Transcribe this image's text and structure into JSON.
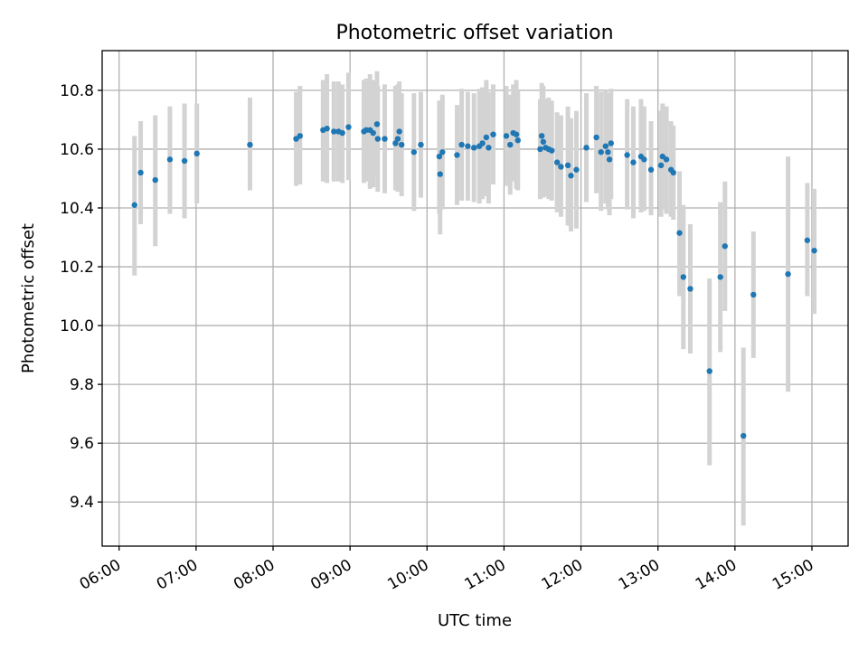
{
  "chart_data": {
    "type": "scatter",
    "title": "Photometric offset variation",
    "xlabel": "UTC time",
    "ylabel": "Photometric offset",
    "x_tick_labels": [
      "06:00",
      "07:00",
      "08:00",
      "09:00",
      "10:00",
      "11:00",
      "12:00",
      "13:00",
      "14:00",
      "15:00"
    ],
    "x_ticks_hours": [
      6,
      7,
      8,
      9,
      10,
      11,
      12,
      13,
      14,
      15
    ],
    "y_tick_labels": [
      "9.4",
      "9.6",
      "9.8",
      "10.0",
      "10.2",
      "10.4",
      "10.6",
      "10.8"
    ],
    "y_ticks": [
      9.4,
      9.6,
      9.8,
      10.0,
      10.2,
      10.4,
      10.6,
      10.8
    ],
    "xlim_hours": [
      5.78,
      15.47
    ],
    "ylim": [
      9.25,
      10.935
    ],
    "grid": true,
    "colors": {
      "point": "#1f77b4",
      "errorbar": "#d3d3d3",
      "grid": "#b0b0b0"
    },
    "series": [
      {
        "points": [
          {
            "x": 6.2,
            "y": 10.41,
            "lo": 10.17,
            "hi": 10.645
          },
          {
            "x": 6.28,
            "y": 10.52,
            "lo": 10.345,
            "hi": 10.695
          },
          {
            "x": 6.47,
            "y": 10.495,
            "lo": 10.27,
            "hi": 10.715
          },
          {
            "x": 6.66,
            "y": 10.565,
            "lo": 10.38,
            "hi": 10.745
          },
          {
            "x": 6.85,
            "y": 10.56,
            "lo": 10.365,
            "hi": 10.755
          },
          {
            "x": 7.01,
            "y": 10.585,
            "lo": 10.415,
            "hi": 10.755
          },
          {
            "x": 7.7,
            "y": 10.615,
            "lo": 10.46,
            "hi": 10.775
          },
          {
            "x": 8.3,
            "y": 10.635,
            "lo": 10.475,
            "hi": 10.795
          },
          {
            "x": 8.35,
            "y": 10.645,
            "lo": 10.48,
            "hi": 10.815
          },
          {
            "x": 8.65,
            "y": 10.665,
            "lo": 10.49,
            "hi": 10.835
          },
          {
            "x": 8.7,
            "y": 10.67,
            "lo": 10.485,
            "hi": 10.855
          },
          {
            "x": 8.79,
            "y": 10.66,
            "lo": 10.49,
            "hi": 10.83
          },
          {
            "x": 8.85,
            "y": 10.66,
            "lo": 10.49,
            "hi": 10.83
          },
          {
            "x": 8.9,
            "y": 10.655,
            "lo": 10.485,
            "hi": 10.82
          },
          {
            "x": 8.98,
            "y": 10.675,
            "lo": 10.495,
            "hi": 10.86
          },
          {
            "x": 9.18,
            "y": 10.66,
            "lo": 10.485,
            "hi": 10.835
          },
          {
            "x": 9.21,
            "y": 10.665,
            "lo": 10.49,
            "hi": 10.84
          },
          {
            "x": 9.26,
            "y": 10.665,
            "lo": 10.465,
            "hi": 10.855
          },
          {
            "x": 9.3,
            "y": 10.655,
            "lo": 10.47,
            "hi": 10.835
          },
          {
            "x": 9.35,
            "y": 10.685,
            "lo": 10.505,
            "hi": 10.865
          },
          {
            "x": 9.36,
            "y": 10.635,
            "lo": 10.455,
            "hi": 10.815
          },
          {
            "x": 9.45,
            "y": 10.635,
            "lo": 10.45,
            "hi": 10.82
          },
          {
            "x": 9.59,
            "y": 10.62,
            "lo": 10.46,
            "hi": 10.815
          },
          {
            "x": 9.62,
            "y": 10.635,
            "lo": 10.455,
            "hi": 10.82
          },
          {
            "x": 9.64,
            "y": 10.66,
            "lo": 10.49,
            "hi": 10.83
          },
          {
            "x": 9.67,
            "y": 10.615,
            "lo": 10.44,
            "hi": 10.79
          },
          {
            "x": 9.83,
            "y": 10.59,
            "lo": 10.39,
            "hi": 10.79
          },
          {
            "x": 9.92,
            "y": 10.615,
            "lo": 10.435,
            "hi": 10.795
          },
          {
            "x": 10.16,
            "y": 10.575,
            "lo": 10.38,
            "hi": 10.765
          },
          {
            "x": 10.17,
            "y": 10.515,
            "lo": 10.31,
            "hi": 10.72
          },
          {
            "x": 10.2,
            "y": 10.59,
            "lo": 10.395,
            "hi": 10.785
          },
          {
            "x": 10.39,
            "y": 10.58,
            "lo": 10.41,
            "hi": 10.75
          },
          {
            "x": 10.45,
            "y": 10.615,
            "lo": 10.425,
            "hi": 10.805
          },
          {
            "x": 10.53,
            "y": 10.61,
            "lo": 10.425,
            "hi": 10.795
          },
          {
            "x": 10.61,
            "y": 10.605,
            "lo": 10.42,
            "hi": 10.79
          },
          {
            "x": 10.68,
            "y": 10.61,
            "lo": 10.415,
            "hi": 10.805
          },
          {
            "x": 10.72,
            "y": 10.62,
            "lo": 10.43,
            "hi": 10.81
          },
          {
            "x": 10.77,
            "y": 10.64,
            "lo": 10.44,
            "hi": 10.835
          },
          {
            "x": 10.8,
            "y": 10.605,
            "lo": 10.415,
            "hi": 10.795
          },
          {
            "x": 10.86,
            "y": 10.65,
            "lo": 10.48,
            "hi": 10.82
          },
          {
            "x": 11.03,
            "y": 10.645,
            "lo": 10.475,
            "hi": 10.815
          },
          {
            "x": 11.08,
            "y": 10.615,
            "lo": 10.445,
            "hi": 10.785
          },
          {
            "x": 11.12,
            "y": 10.655,
            "lo": 10.49,
            "hi": 10.82
          },
          {
            "x": 11.16,
            "y": 10.65,
            "lo": 10.465,
            "hi": 10.835
          },
          {
            "x": 11.18,
            "y": 10.63,
            "lo": 10.46,
            "hi": 10.8
          },
          {
            "x": 11.47,
            "y": 10.6,
            "lo": 10.43,
            "hi": 10.77
          },
          {
            "x": 11.49,
            "y": 10.645,
            "lo": 10.47,
            "hi": 10.825
          },
          {
            "x": 11.51,
            "y": 10.625,
            "lo": 10.435,
            "hi": 10.815
          },
          {
            "x": 11.54,
            "y": 10.605,
            "lo": 10.44,
            "hi": 10.77
          },
          {
            "x": 11.58,
            "y": 10.6,
            "lo": 10.43,
            "hi": 10.775
          },
          {
            "x": 11.62,
            "y": 10.595,
            "lo": 10.425,
            "hi": 10.765
          },
          {
            "x": 11.69,
            "y": 10.555,
            "lo": 10.385,
            "hi": 10.725
          },
          {
            "x": 11.74,
            "y": 10.54,
            "lo": 10.37,
            "hi": 10.715
          },
          {
            "x": 11.83,
            "y": 10.545,
            "lo": 10.34,
            "hi": 10.745
          },
          {
            "x": 11.87,
            "y": 10.51,
            "lo": 10.32,
            "hi": 10.705
          },
          {
            "x": 11.94,
            "y": 10.53,
            "lo": 10.33,
            "hi": 10.73
          },
          {
            "x": 12.07,
            "y": 10.605,
            "lo": 10.42,
            "hi": 10.79
          },
          {
            "x": 12.2,
            "y": 10.64,
            "lo": 10.45,
            "hi": 10.815
          },
          {
            "x": 12.26,
            "y": 10.59,
            "lo": 10.39,
            "hi": 10.795
          },
          {
            "x": 12.32,
            "y": 10.61,
            "lo": 10.415,
            "hi": 10.8
          },
          {
            "x": 12.35,
            "y": 10.59,
            "lo": 10.395,
            "hi": 10.79
          },
          {
            "x": 12.37,
            "y": 10.565,
            "lo": 10.375,
            "hi": 10.765
          },
          {
            "x": 12.39,
            "y": 10.62,
            "lo": 10.43,
            "hi": 10.805
          },
          {
            "x": 12.6,
            "y": 10.58,
            "lo": 10.395,
            "hi": 10.77
          },
          {
            "x": 12.68,
            "y": 10.555,
            "lo": 10.365,
            "hi": 10.745
          },
          {
            "x": 12.78,
            "y": 10.575,
            "lo": 10.385,
            "hi": 10.77
          },
          {
            "x": 12.82,
            "y": 10.565,
            "lo": 10.39,
            "hi": 10.745
          },
          {
            "x": 12.91,
            "y": 10.53,
            "lo": 10.375,
            "hi": 10.695
          },
          {
            "x": 13.04,
            "y": 10.545,
            "lo": 10.37,
            "hi": 10.73
          },
          {
            "x": 13.06,
            "y": 10.575,
            "lo": 10.395,
            "hi": 10.755
          },
          {
            "x": 13.11,
            "y": 10.565,
            "lo": 10.38,
            "hi": 10.745
          },
          {
            "x": 13.17,
            "y": 10.53,
            "lo": 10.37,
            "hi": 10.695
          },
          {
            "x": 13.2,
            "y": 10.52,
            "lo": 10.36,
            "hi": 10.68
          },
          {
            "x": 13.28,
            "y": 10.315,
            "lo": 10.1,
            "hi": 10.525
          },
          {
            "x": 13.33,
            "y": 10.165,
            "lo": 9.92,
            "hi": 10.41
          },
          {
            "x": 13.42,
            "y": 10.125,
            "lo": 9.905,
            "hi": 10.345
          },
          {
            "x": 13.67,
            "y": 9.845,
            "lo": 9.525,
            "hi": 10.16
          },
          {
            "x": 13.81,
            "y": 10.165,
            "lo": 9.91,
            "hi": 10.42
          },
          {
            "x": 13.87,
            "y": 10.27,
            "lo": 10.05,
            "hi": 10.49
          },
          {
            "x": 14.11,
            "y": 9.625,
            "lo": 9.32,
            "hi": 9.925
          },
          {
            "x": 14.24,
            "y": 10.105,
            "lo": 9.89,
            "hi": 10.32
          },
          {
            "x": 14.69,
            "y": 10.175,
            "lo": 9.775,
            "hi": 10.575
          },
          {
            "x": 14.94,
            "y": 10.29,
            "lo": 10.1,
            "hi": 10.485
          },
          {
            "x": 15.03,
            "y": 10.255,
            "lo": 10.04,
            "hi": 10.465
          }
        ]
      }
    ]
  }
}
